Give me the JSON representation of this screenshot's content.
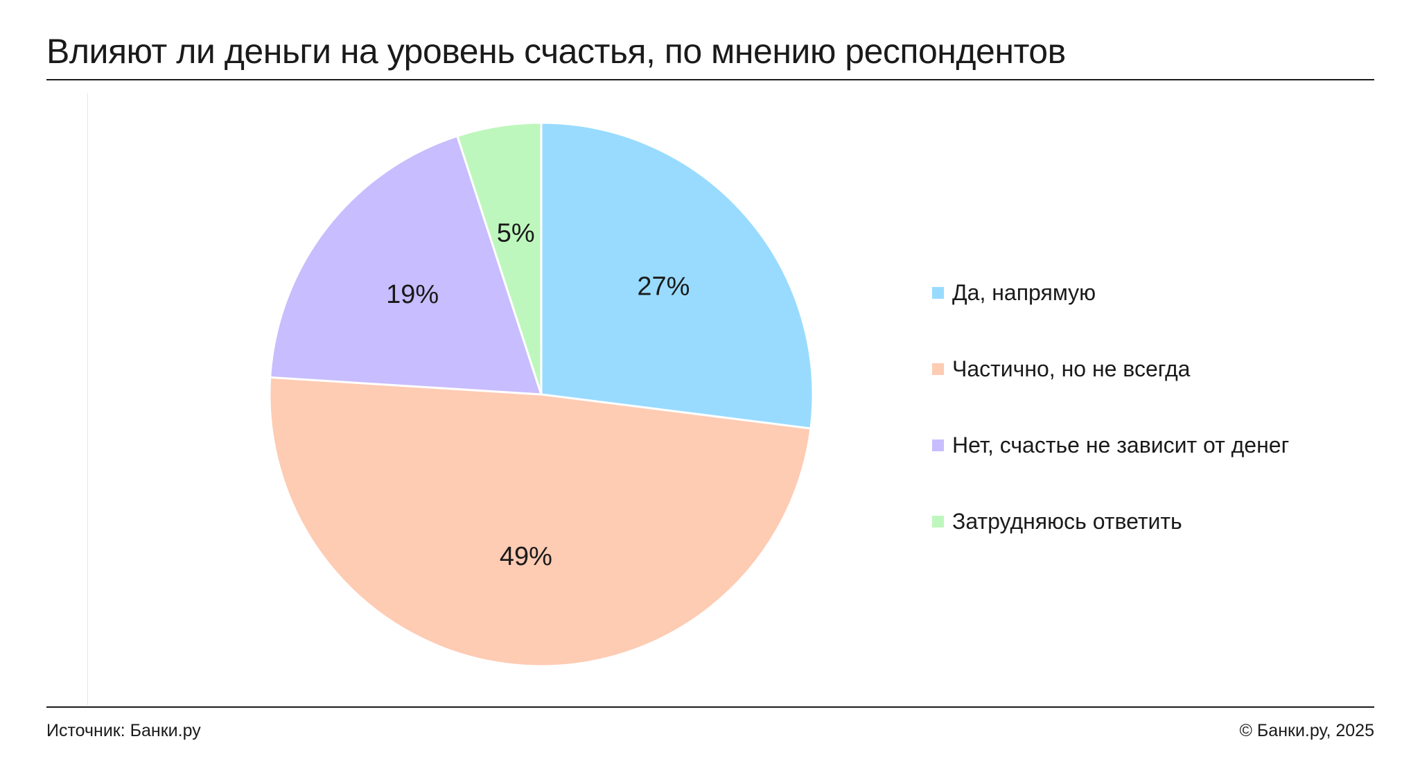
{
  "title": "Влияют ли деньги на уровень счастья, по мнению респондентов",
  "footer": {
    "source": "Источник: Банки.ру",
    "copyright": "© Банки.ру, 2025"
  },
  "chart_data": {
    "type": "pie",
    "title": "Влияют ли деньги на уровень счастья, по мнению респондентов",
    "start_angle": "12 o'clock",
    "direction": "clockwise",
    "legend_position": "right",
    "slices": [
      {
        "label": "Да, напрямую",
        "value": 27,
        "value_label": "27%",
        "color": "#99dbff"
      },
      {
        "label": "Частично, но не всегда",
        "value": 49,
        "value_label": "49%",
        "color": "#fecbb3"
      },
      {
        "label": "Нет, счастье не зависит от денег",
        "value": 19,
        "value_label": "19%",
        "color": "#c8bdfe"
      },
      {
        "label": "Затрудняюсь ответить",
        "value": 5,
        "value_label": "5%",
        "color": "#bef7bd"
      }
    ],
    "slice_border_color": "#ffffff"
  }
}
